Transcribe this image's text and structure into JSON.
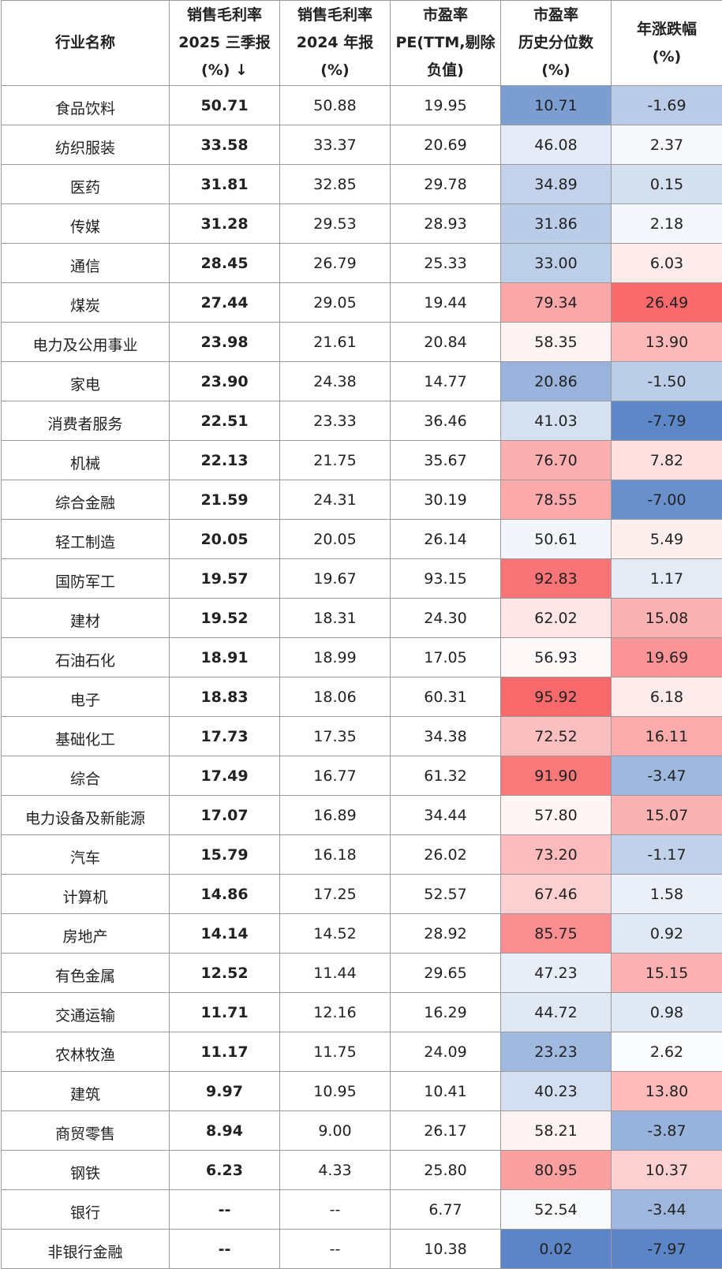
{
  "colors": {
    "header_bg": "#ffffff",
    "grid": "#9a9a9a",
    "low_blue": "#5b85c6",
    "mid_white": "#ffffff",
    "high_red": "#f8696b"
  },
  "headers": [
    [
      "行业名称"
    ],
    [
      "销售毛利率",
      "2025 三季报",
      "(%) ↓"
    ],
    [
      "销售毛利率",
      "2024 年报",
      "(%)"
    ],
    [
      "市盈率",
      "PE(TTM,剔除",
      "负值)"
    ],
    [
      "市盈率",
      "历史分位数",
      "(%)"
    ],
    [
      "年涨跌幅",
      "(%)"
    ]
  ],
  "rows": [
    {
      "name": "食品饮料",
      "gm2025q3": "50.71",
      "gm2024": "50.88",
      "pe": "19.95",
      "pe_pct": "10.71",
      "yoy": "-1.69"
    },
    {
      "name": "纺织服装",
      "gm2025q3": "33.58",
      "gm2024": "33.37",
      "pe": "20.69",
      "pe_pct": "46.08",
      "yoy": "2.37"
    },
    {
      "name": "医药",
      "gm2025q3": "31.81",
      "gm2024": "32.85",
      "pe": "29.78",
      "pe_pct": "34.89",
      "yoy": "0.15"
    },
    {
      "name": "传媒",
      "gm2025q3": "31.28",
      "gm2024": "29.53",
      "pe": "28.93",
      "pe_pct": "31.86",
      "yoy": "2.18"
    },
    {
      "name": "通信",
      "gm2025q3": "28.45",
      "gm2024": "26.79",
      "pe": "25.33",
      "pe_pct": "33.00",
      "yoy": "6.03"
    },
    {
      "name": "煤炭",
      "gm2025q3": "27.44",
      "gm2024": "29.05",
      "pe": "19.44",
      "pe_pct": "79.34",
      "yoy": "26.49"
    },
    {
      "name": "电力及公用事业",
      "gm2025q3": "23.98",
      "gm2024": "21.61",
      "pe": "20.84",
      "pe_pct": "58.35",
      "yoy": "13.90"
    },
    {
      "name": "家电",
      "gm2025q3": "23.90",
      "gm2024": "24.38",
      "pe": "14.77",
      "pe_pct": "20.86",
      "yoy": "-1.50"
    },
    {
      "name": "消费者服务",
      "gm2025q3": "22.51",
      "gm2024": "23.33",
      "pe": "36.46",
      "pe_pct": "41.03",
      "yoy": "-7.79"
    },
    {
      "name": "机械",
      "gm2025q3": "22.13",
      "gm2024": "21.75",
      "pe": "35.67",
      "pe_pct": "76.70",
      "yoy": "7.82"
    },
    {
      "name": "综合金融",
      "gm2025q3": "21.59",
      "gm2024": "24.31",
      "pe": "30.19",
      "pe_pct": "78.55",
      "yoy": "-7.00"
    },
    {
      "name": "轻工制造",
      "gm2025q3": "20.05",
      "gm2024": "20.05",
      "pe": "26.14",
      "pe_pct": "50.61",
      "yoy": "5.49"
    },
    {
      "name": "国防军工",
      "gm2025q3": "19.57",
      "gm2024": "19.67",
      "pe": "93.15",
      "pe_pct": "92.83",
      "yoy": "1.17"
    },
    {
      "name": "建材",
      "gm2025q3": "19.52",
      "gm2024": "18.31",
      "pe": "24.30",
      "pe_pct": "62.02",
      "yoy": "15.08"
    },
    {
      "name": "石油石化",
      "gm2025q3": "18.91",
      "gm2024": "18.99",
      "pe": "17.05",
      "pe_pct": "56.93",
      "yoy": "19.69"
    },
    {
      "name": "电子",
      "gm2025q3": "18.83",
      "gm2024": "18.06",
      "pe": "60.31",
      "pe_pct": "95.92",
      "yoy": "6.18"
    },
    {
      "name": "基础化工",
      "gm2025q3": "17.73",
      "gm2024": "17.35",
      "pe": "34.38",
      "pe_pct": "72.52",
      "yoy": "16.11"
    },
    {
      "name": "综合",
      "gm2025q3": "17.49",
      "gm2024": "16.77",
      "pe": "61.32",
      "pe_pct": "91.90",
      "yoy": "-3.47"
    },
    {
      "name": "电力设备及新能源",
      "gm2025q3": "17.07",
      "gm2024": "16.89",
      "pe": "34.44",
      "pe_pct": "57.80",
      "yoy": "15.07"
    },
    {
      "name": "汽车",
      "gm2025q3": "15.79",
      "gm2024": "16.18",
      "pe": "26.02",
      "pe_pct": "73.20",
      "yoy": "-1.17"
    },
    {
      "name": "计算机",
      "gm2025q3": "14.86",
      "gm2024": "17.25",
      "pe": "52.57",
      "pe_pct": "67.46",
      "yoy": "1.58"
    },
    {
      "name": "房地产",
      "gm2025q3": "14.14",
      "gm2024": "14.52",
      "pe": "28.92",
      "pe_pct": "85.75",
      "yoy": "0.92"
    },
    {
      "name": "有色金属",
      "gm2025q3": "12.52",
      "gm2024": "11.44",
      "pe": "29.65",
      "pe_pct": "47.23",
      "yoy": "15.15"
    },
    {
      "name": "交通运输",
      "gm2025q3": "11.71",
      "gm2024": "12.16",
      "pe": "16.29",
      "pe_pct": "44.72",
      "yoy": "0.98"
    },
    {
      "name": "农林牧渔",
      "gm2025q3": "11.17",
      "gm2024": "11.75",
      "pe": "24.09",
      "pe_pct": "23.23",
      "yoy": "2.62"
    },
    {
      "name": "建筑",
      "gm2025q3": "9.97",
      "gm2024": "10.95",
      "pe": "10.41",
      "pe_pct": "40.23",
      "yoy": "13.80"
    },
    {
      "name": "商贸零售",
      "gm2025q3": "8.94",
      "gm2024": "9.00",
      "pe": "26.17",
      "pe_pct": "58.21",
      "yoy": "-3.87"
    },
    {
      "name": "钢铁",
      "gm2025q3": "6.23",
      "gm2024": "4.33",
      "pe": "25.80",
      "pe_pct": "80.95",
      "yoy": "10.37"
    },
    {
      "name": "银行",
      "gm2025q3": "--",
      "gm2024": "--",
      "pe": "6.77",
      "pe_pct": "52.54",
      "yoy": "-3.44"
    },
    {
      "name": "非银行金融",
      "gm2025q3": "--",
      "gm2024": "--",
      "pe": "10.38",
      "pe_pct": "0.02",
      "yoy": "-7.97"
    }
  ]
}
